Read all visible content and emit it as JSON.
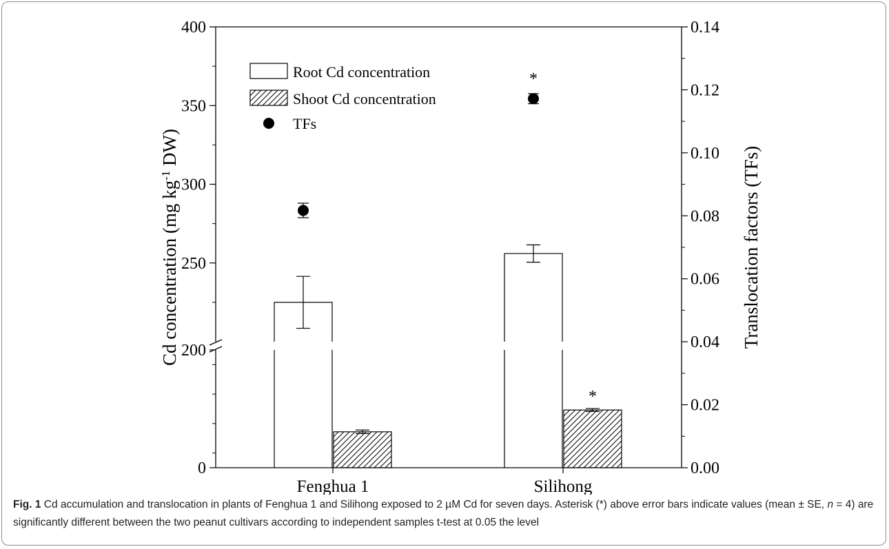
{
  "chart_data": {
    "type": "bar",
    "categories": [
      "Fenghua 1",
      "Silihong"
    ],
    "series": [
      {
        "name": "Root Cd concentration",
        "values": [
          225,
          256
        ],
        "errors": [
          16.5,
          5.5
        ],
        "axis": "left",
        "pattern": "none"
      },
      {
        "name": "Shoot Cd concentration",
        "values": [
          61,
          98
        ],
        "errors": [
          3,
          2.5
        ],
        "axis": "left",
        "pattern": "hatched"
      },
      {
        "name": "TFs",
        "values": [
          0.0817,
          0.1172
        ],
        "errors": [
          0.0023,
          0.0016
        ],
        "axis": "right",
        "marker": "filled-circle"
      }
    ],
    "significance": [
      {
        "series": "Shoot Cd concentration",
        "category": "Silihong",
        "label": "*"
      },
      {
        "series": "TFs",
        "category": "Silihong",
        "label": "*"
      }
    ],
    "ylabel_left": "Cd concentration (mg kg-1 DW)",
    "ylabel_left_parts": [
      "Cd concentration (mg kg",
      "-1",
      " DW)"
    ],
    "ylabel_right": "Translocation factors (TFs)",
    "left_axis": {
      "break_value": 200,
      "ticks": [
        0,
        200,
        250,
        300,
        350,
        400
      ],
      "tick_labels": [
        "0",
        "200",
        "250",
        "300",
        "350",
        "400"
      ]
    },
    "right_axis": {
      "ylim": [
        0,
        0.14
      ],
      "ticks": [
        0,
        0.02,
        0.04,
        0.06,
        0.08,
        0.1,
        0.12,
        0.14
      ],
      "tick_labels": [
        "0.00",
        "0.02",
        "0.04",
        "0.06",
        "0.08",
        "0.10",
        "0.12",
        "0.14"
      ]
    },
    "legend_position": "top-left",
    "grid": false
  },
  "caption": {
    "label": "Fig. 1",
    "text_before_n": " Cd accumulation and translocation in plants of Fenghua 1 and Silihong exposed to 2 µM Cd for seven days. Asterisk (*) above error bars indicate values (mean ± SE, ",
    "n_symbol": "n",
    "text_after_n": " = 4) are significantly different between the two peanut cultivars according to independent samples t-test at 0.05 the level"
  }
}
